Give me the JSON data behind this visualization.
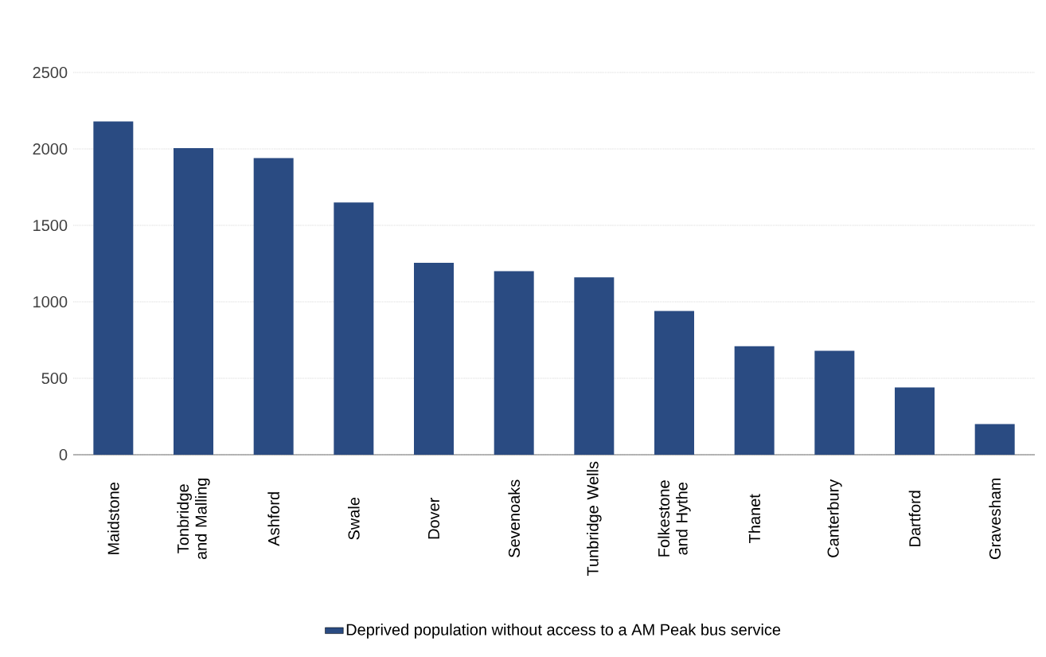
{
  "chart_data": {
    "type": "bar",
    "categories": [
      "Maidstone",
      "Tonbridge and Malling",
      "Ashford",
      "Swale",
      "Dover",
      "Sevenoaks",
      "Tunbridge Wells",
      "Folkestone and Hythe",
      "Thanet",
      "Canterbury",
      "Dartford",
      "Gravesham"
    ],
    "series": [
      {
        "name": "Deprived population without access to a AM Peak bus service",
        "color": "#2a4b82",
        "values": [
          2180,
          2005,
          1940,
          1650,
          1255,
          1200,
          1160,
          940,
          710,
          680,
          440,
          200
        ]
      }
    ],
    "ylim": [
      0,
      2500
    ],
    "yticks": [
      0,
      500,
      1000,
      1500,
      2000,
      2500
    ],
    "grid": "y",
    "legend": "bottom"
  }
}
